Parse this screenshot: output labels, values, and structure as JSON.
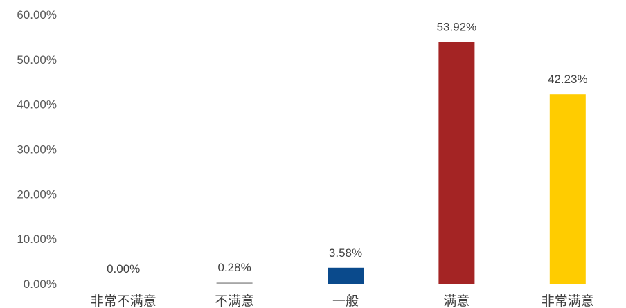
{
  "chart_data": {
    "type": "bar",
    "categories": [
      "非常不满意",
      "不满意",
      "一般",
      "满意",
      "非常满意"
    ],
    "values": [
      0.0,
      0.28,
      3.58,
      53.92,
      42.23
    ],
    "data_labels": [
      "0.00%",
      "0.28%",
      "3.58%",
      "53.92%",
      "42.23%"
    ],
    "bar_colors": [
      "#7f7f7f",
      "#a6a6a6",
      "#0a4a8c",
      "#a42424",
      "#ffcc00"
    ],
    "ylim": [
      0,
      60
    ],
    "y_ticks": [
      0,
      10,
      20,
      30,
      40,
      50,
      60
    ],
    "y_tick_labels": [
      "0.00%",
      "10.00%",
      "20.00%",
      "30.00%",
      "40.00%",
      "50.00%",
      "60.00%"
    ],
    "grid": true,
    "legend": "none"
  }
}
